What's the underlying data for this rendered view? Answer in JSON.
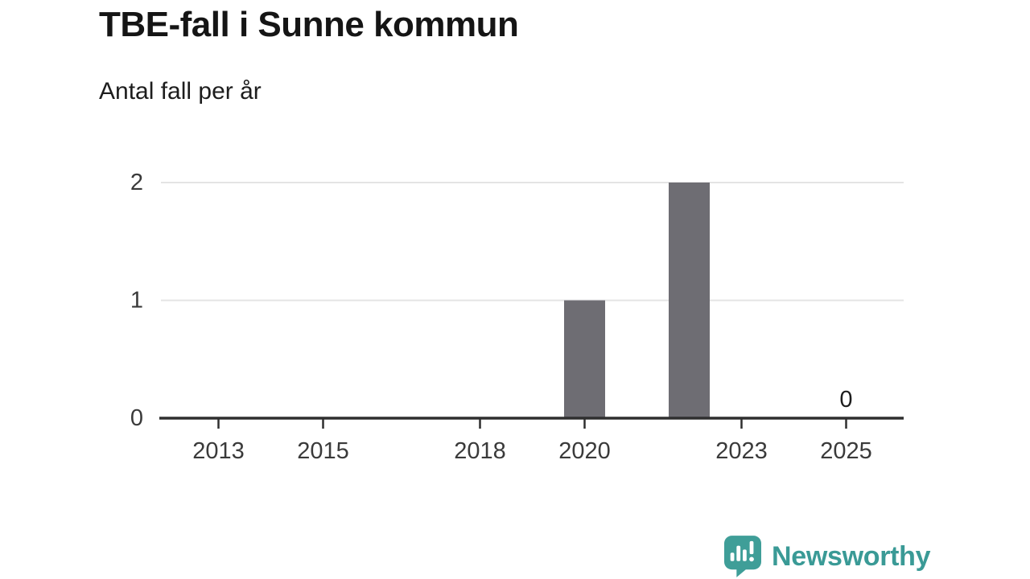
{
  "header": {
    "title": "TBE-fall i Sunne kommun",
    "subtitle": "Antal fall per år"
  },
  "chart_data": {
    "type": "bar",
    "title": "TBE-fall i Sunne kommun",
    "subtitle": "Antal fall per år",
    "xlabel": "",
    "ylabel": "Antal fall",
    "x_ticks": [
      2013,
      2015,
      2018,
      2020,
      2023,
      2025
    ],
    "y_ticks": [
      0,
      1,
      2
    ],
    "xlim": [
      2011.9,
      2026.1
    ],
    "ylim": [
      0,
      2
    ],
    "grid": true,
    "bars": [
      {
        "year": 2020,
        "value": 1
      },
      {
        "year": 2022,
        "value": 2
      },
      {
        "year": 2025,
        "value": 0,
        "label": "0"
      }
    ],
    "colors": {
      "bar": "#6e6d73",
      "gridline": "#e4e4e4",
      "axis": "#2f2f2f",
      "tick_label": "#3a3a3a",
      "value_label": "#1d1d1d"
    }
  },
  "footer": {
    "brand": "Newsworthy",
    "brand_color": "#3a9a96",
    "logo_icon": "speech-bubble-bar-chart-icon"
  }
}
